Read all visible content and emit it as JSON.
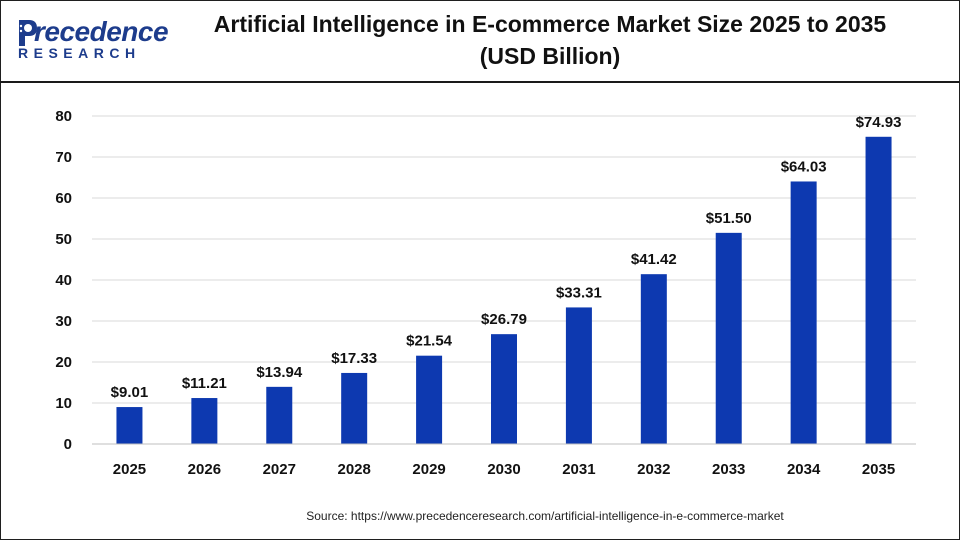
{
  "logo": {
    "word": "recedence",
    "sub": "RESEARCH",
    "brand_color": "#1d3c8c"
  },
  "title": "Artificial Intelligence in E-commerce Market Size 2025 to 2035 (USD Billion)",
  "source": "Source: https://www.precedenceresearch.com/artificial-intelligence-in-e-commerce-market",
  "chart_data": {
    "type": "bar",
    "title": "Artificial Intelligence in E-commerce Market Size 2025 to 2035 (USD Billion)",
    "xlabel": "",
    "ylabel": "",
    "ylim": [
      0,
      80
    ],
    "yticks": [
      0,
      10,
      20,
      30,
      40,
      50,
      60,
      70,
      80
    ],
    "grid": true,
    "legend": "none",
    "bar_color": "#0d39b0",
    "categories": [
      "2025",
      "2026",
      "2027",
      "2028",
      "2029",
      "2030",
      "2031",
      "2032",
      "2033",
      "2034",
      "2035"
    ],
    "values": [
      9.01,
      11.21,
      13.94,
      17.33,
      21.54,
      26.79,
      33.31,
      41.42,
      51.5,
      64.03,
      74.93
    ],
    "value_labels": [
      "$9.01",
      "$11.21",
      "$13.94",
      "$17.33",
      "$21.54",
      "$26.79",
      "$33.31",
      "$41.42",
      "$51.50",
      "$64.03",
      "$74.93"
    ]
  }
}
